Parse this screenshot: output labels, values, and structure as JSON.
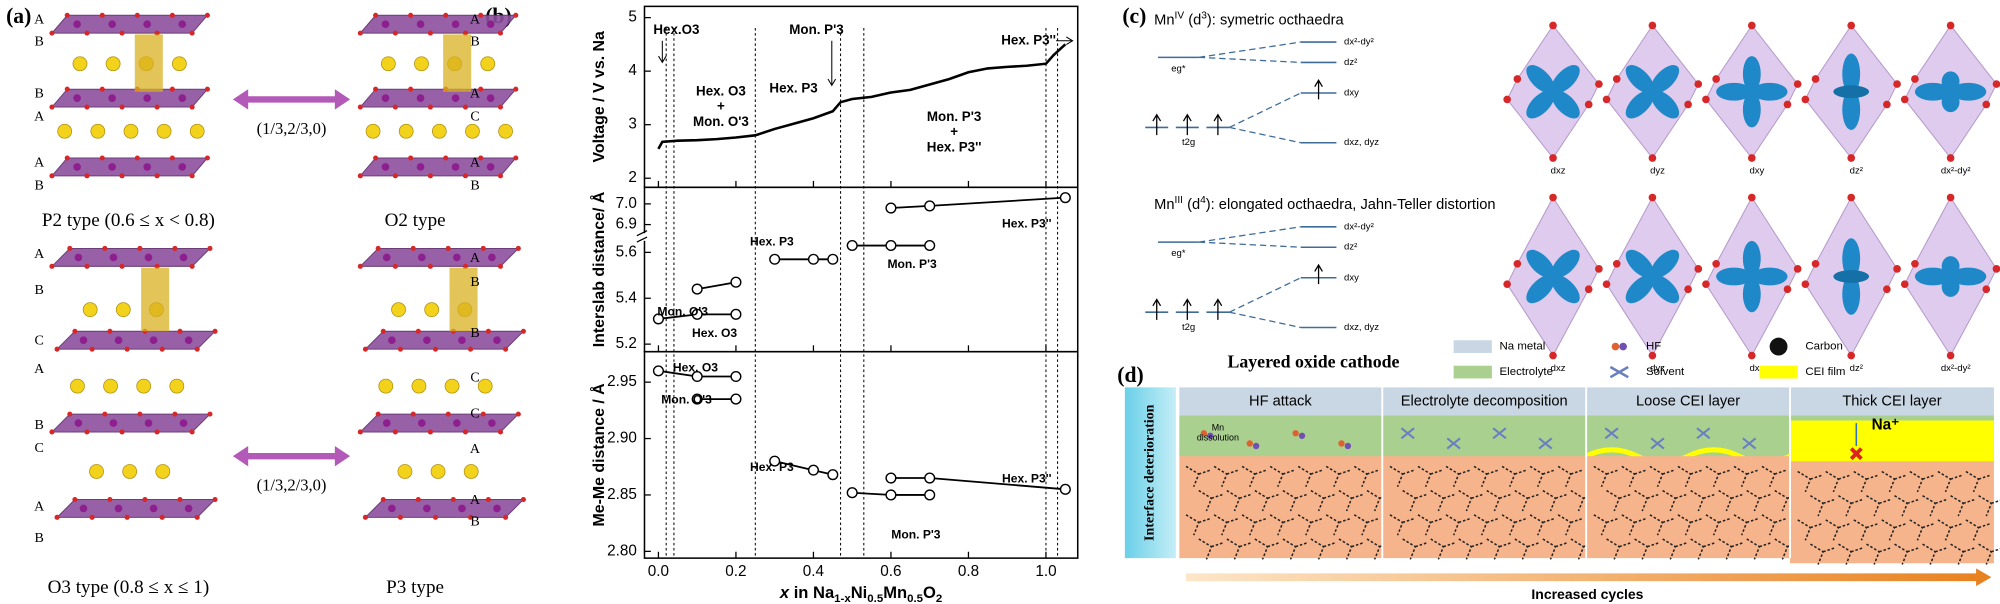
{
  "panel_a": {
    "label": "(a)",
    "structures": [
      {
        "name": "P2 type (0.6 ≤ x < 0.8)",
        "stacking": [
          "A",
          "B",
          "B",
          "A",
          "A",
          "B"
        ]
      },
      {
        "name": "O2 type",
        "stacking": [
          "A",
          "B",
          "A",
          "C",
          "A",
          "B"
        ]
      },
      {
        "name": "O3 type (0.8 ≤ x ≤ 1)",
        "stacking": [
          "A",
          "B",
          "C",
          "A",
          "B",
          "C",
          "A",
          "B"
        ]
      },
      {
        "name": "P3 type",
        "stacking": [
          "A",
          "B",
          "B",
          "C",
          "C",
          "A",
          "A",
          "B"
        ]
      }
    ],
    "translations": [
      "(1/3,2/3,0)",
      "(1/3,2/3,0)"
    ]
  },
  "chart_data": [
    {
      "type": "line",
      "label": "(b)",
      "ylabel": "Voltage / V vs. Na",
      "xlim": [
        -0.036,
        1.082
      ],
      "ylim": [
        1.83,
        5.21
      ],
      "yticks": [
        2,
        3,
        4,
        5
      ],
      "phase_boundaries": [
        0.02,
        0.04,
        0.25,
        0.47,
        0.53,
        1.0,
        1.03
      ],
      "annotations": [
        "Hex.O3",
        "Hex. O3",
        "+",
        "Mon. O'3",
        "Hex. P3",
        "Mon. P'3",
        "Mon. P'3",
        "+",
        "Hex. P3''",
        "Hex. P3''"
      ],
      "series": [
        {
          "color": "#000000",
          "x": [
            0,
            0.01,
            0.05,
            0.1,
            0.15,
            0.2,
            0.25,
            0.3,
            0.35,
            0.4,
            0.45,
            0.47,
            0.5,
            0.55,
            0.6,
            0.65,
            0.7,
            0.75,
            0.8,
            0.85,
            0.9,
            0.95,
            1.0,
            1.02,
            1.05
          ],
          "values": [
            2.55,
            2.68,
            2.7,
            2.71,
            2.73,
            2.76,
            2.8,
            2.92,
            3.02,
            3.12,
            3.25,
            3.42,
            3.48,
            3.52,
            3.6,
            3.65,
            3.75,
            3.85,
            3.98,
            4.05,
            4.08,
            4.1,
            4.14,
            4.3,
            4.5
          ]
        }
      ]
    },
    {
      "type": "line",
      "markers": true,
      "ylabel": "Interslab distance/ Å",
      "xlim": [
        -0.036,
        1.082
      ],
      "ylim": [
        5.167,
        5.667
      ],
      "yticks": [
        5.2,
        5.4,
        5.6
      ],
      "ylim_upper": [
        6.84,
        7.08
      ],
      "yticks_upper": [
        {
          "value": 6.9,
          "label": "6.9"
        },
        {
          "value": 7.0,
          "label": "7.0"
        }
      ],
      "series": [
        {
          "name": "Hex. O3",
          "color": "#000000",
          "x": [
            0,
            0.1,
            0.2
          ],
          "values": [
            5.31,
            5.33,
            5.33
          ]
        },
        {
          "name": "Mon. O'3",
          "color": "#000000",
          "x": [
            0.1,
            0.2
          ],
          "values": [
            5.44,
            5.47
          ]
        },
        {
          "name": "Hex. P3",
          "color": "#000000",
          "x": [
            0.3,
            0.4,
            0.45
          ],
          "values": [
            5.57,
            5.57,
            5.57
          ]
        },
        {
          "name": "Mon. P'3",
          "color": "#000000",
          "x": [
            0.5,
            0.6,
            0.7
          ],
          "values": [
            5.63,
            5.63,
            5.63
          ]
        },
        {
          "name": "Hex. P3''",
          "color": "#000000",
          "x": [
            0.6,
            0.7,
            1.05
          ],
          "values": [
            6.98,
            6.99,
            7.03
          ]
        }
      ]
    },
    {
      "type": "line",
      "markers": true,
      "ylabel": "Me-Me distance / Å",
      "xlabel": [
        "x",
        " in Na",
        "1-x",
        "Ni",
        "0.5",
        "Mn",
        "0.5",
        "O",
        "2"
      ],
      "xlim": [
        -0.036,
        1.082
      ],
      "xticks": [
        {
          "value": 0,
          "label": "0.0"
        },
        0.2,
        0.4,
        0.6,
        0.8,
        {
          "value": 1,
          "label": "1.0"
        }
      ],
      "ylim": [
        2.794,
        2.977
      ],
      "yticks": [
        {
          "value": 2.8,
          "label": "2.80"
        },
        2.85,
        {
          "value": 2.9,
          "label": "2.90"
        },
        2.95
      ],
      "series": [
        {
          "name": "Hex. O3",
          "color": "#000000",
          "x": [
            0,
            0.1,
            0.2
          ],
          "values": [
            2.96,
            2.955,
            2.955
          ]
        },
        {
          "name": "Mon. O'3",
          "color": "#000000",
          "x": [
            0.1,
            0.2
          ],
          "values": [
            2.935,
            2.935
          ]
        },
        {
          "name": "Hex. P3",
          "color": "#000000",
          "x": [
            0.3,
            0.4,
            0.45
          ],
          "values": [
            2.88,
            2.872,
            2.868
          ]
        },
        {
          "name": "Mon. P'3",
          "color": "#000000",
          "x": [
            0.5,
            0.6,
            0.7
          ],
          "values": [
            2.852,
            2.85,
            2.85
          ]
        },
        {
          "name": "Hex. P3''",
          "color": "#000000",
          "x": [
            0.6,
            0.7,
            1.05
          ],
          "values": [
            2.865,
            2.865,
            2.855
          ]
        }
      ]
    }
  ],
  "panel_c": {
    "label": "(c)",
    "rows": [
      {
        "title": [
          "Mn",
          "IV",
          " (d",
          "3",
          "): symetric octhaedra"
        ]
      },
      {
        "title": [
          "Mn",
          "III",
          " (d",
          "4",
          "): elongated octhaedra, Jahn-Teller distortion"
        ]
      }
    ],
    "levels": [
      "dx²-dy²",
      "dz²",
      "dxy",
      "dxz, dyz"
    ],
    "groups": [
      "eg*",
      "t2g"
    ],
    "orbitals": [
      "dxz",
      "dyz",
      "dxy",
      "dz²",
      "dx²-dy²"
    ]
  },
  "panel_d": {
    "label": "(d)",
    "title": "Layered oxide cathode",
    "legend": [
      "Na metal",
      "HF",
      "Carbon",
      "Electrolyte",
      "Solvent",
      "CEI film"
    ],
    "side_label": "Interface deterioration",
    "stages": [
      "HF attack",
      "Electrolyte decomposition",
      "Loose CEI layer",
      "Thick CEI layer"
    ],
    "note": [
      "Mn",
      "dissolution"
    ],
    "ion": "Na⁺",
    "arrow_label": "Increased cycles"
  }
}
